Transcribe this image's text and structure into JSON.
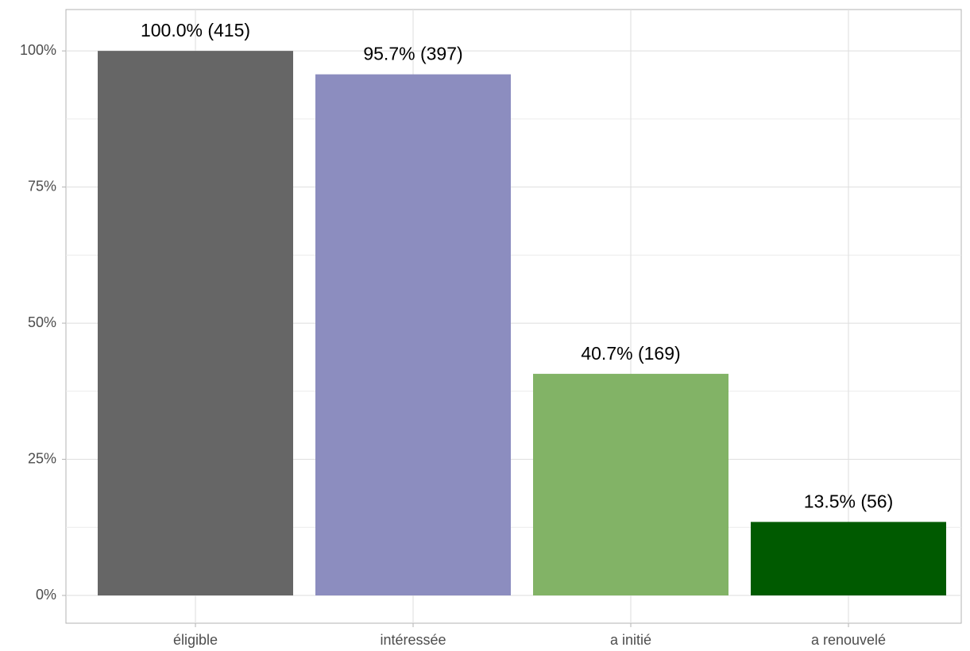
{
  "chart_data": {
    "type": "bar",
    "categories": [
      "éligible",
      "intéressée",
      "a initié",
      "a renouvelé"
    ],
    "values": [
      100.0,
      95.7,
      40.7,
      13.5
    ],
    "value_labels": [
      "100.0% (415)",
      "95.7% (397)",
      "40.7% (169)",
      "13.5% (56)"
    ],
    "colors": [
      "#666666",
      "#8c8dbf",
      "#82b366",
      "#005a00"
    ],
    "ylim": [
      -5.1,
      107.6
    ],
    "yticks": [
      {
        "value": 0,
        "label": "0%"
      },
      {
        "value": 25,
        "label": "25%"
      },
      {
        "value": 50,
        "label": "50%"
      },
      {
        "value": 75,
        "label": "75%"
      },
      {
        "value": 100,
        "label": "100%"
      }
    ],
    "minor_yticks": [
      12.5,
      37.5,
      62.5,
      87.5
    ],
    "grid": true
  }
}
